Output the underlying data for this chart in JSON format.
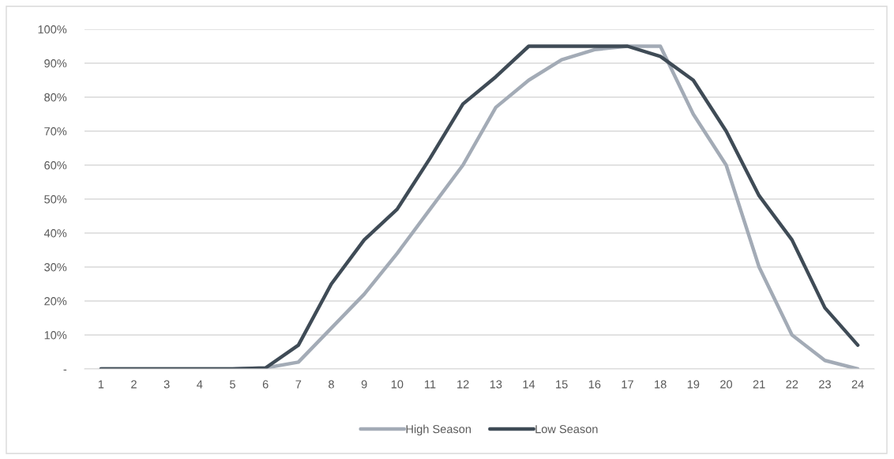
{
  "chart_data": {
    "type": "line",
    "categories": [
      "1",
      "2",
      "3",
      "4",
      "5",
      "6",
      "7",
      "8",
      "9",
      "10",
      "11",
      "12",
      "13",
      "14",
      "15",
      "16",
      "17",
      "18",
      "19",
      "20",
      "21",
      "22",
      "23",
      "24"
    ],
    "series": [
      {
        "name": "High Season",
        "color": "#a3abb6",
        "values": [
          0,
          0,
          0,
          0,
          0,
          0.3,
          2,
          12,
          22,
          34,
          47,
          60,
          77,
          85,
          91,
          94,
          95,
          95,
          75,
          60,
          30,
          10,
          2.5,
          0
        ]
      },
      {
        "name": "Low Season",
        "color": "#3f4b56",
        "values": [
          0,
          0,
          0,
          0,
          0,
          0.3,
          7,
          25,
          38,
          47,
          62,
          78,
          86,
          95,
          95,
          95,
          95,
          92,
          85,
          70,
          51,
          38,
          18,
          7
        ]
      }
    ],
    "ylim": [
      0,
      100
    ],
    "yticks": [
      {
        "value": 0,
        "label": "-"
      },
      {
        "value": 10,
        "label": "10%"
      },
      {
        "value": 20,
        "label": "20%"
      },
      {
        "value": 30,
        "label": "30%"
      },
      {
        "value": 40,
        "label": "40%"
      },
      {
        "value": 50,
        "label": "50%"
      },
      {
        "value": 60,
        "label": "60%"
      },
      {
        "value": 70,
        "label": "70%"
      },
      {
        "value": 80,
        "label": "80%"
      },
      {
        "value": 90,
        "label": "90%"
      },
      {
        "value": 100,
        "label": "100%"
      }
    ],
    "grid": "y",
    "legend": "bottom",
    "marker": "none",
    "line_style": "solid"
  }
}
